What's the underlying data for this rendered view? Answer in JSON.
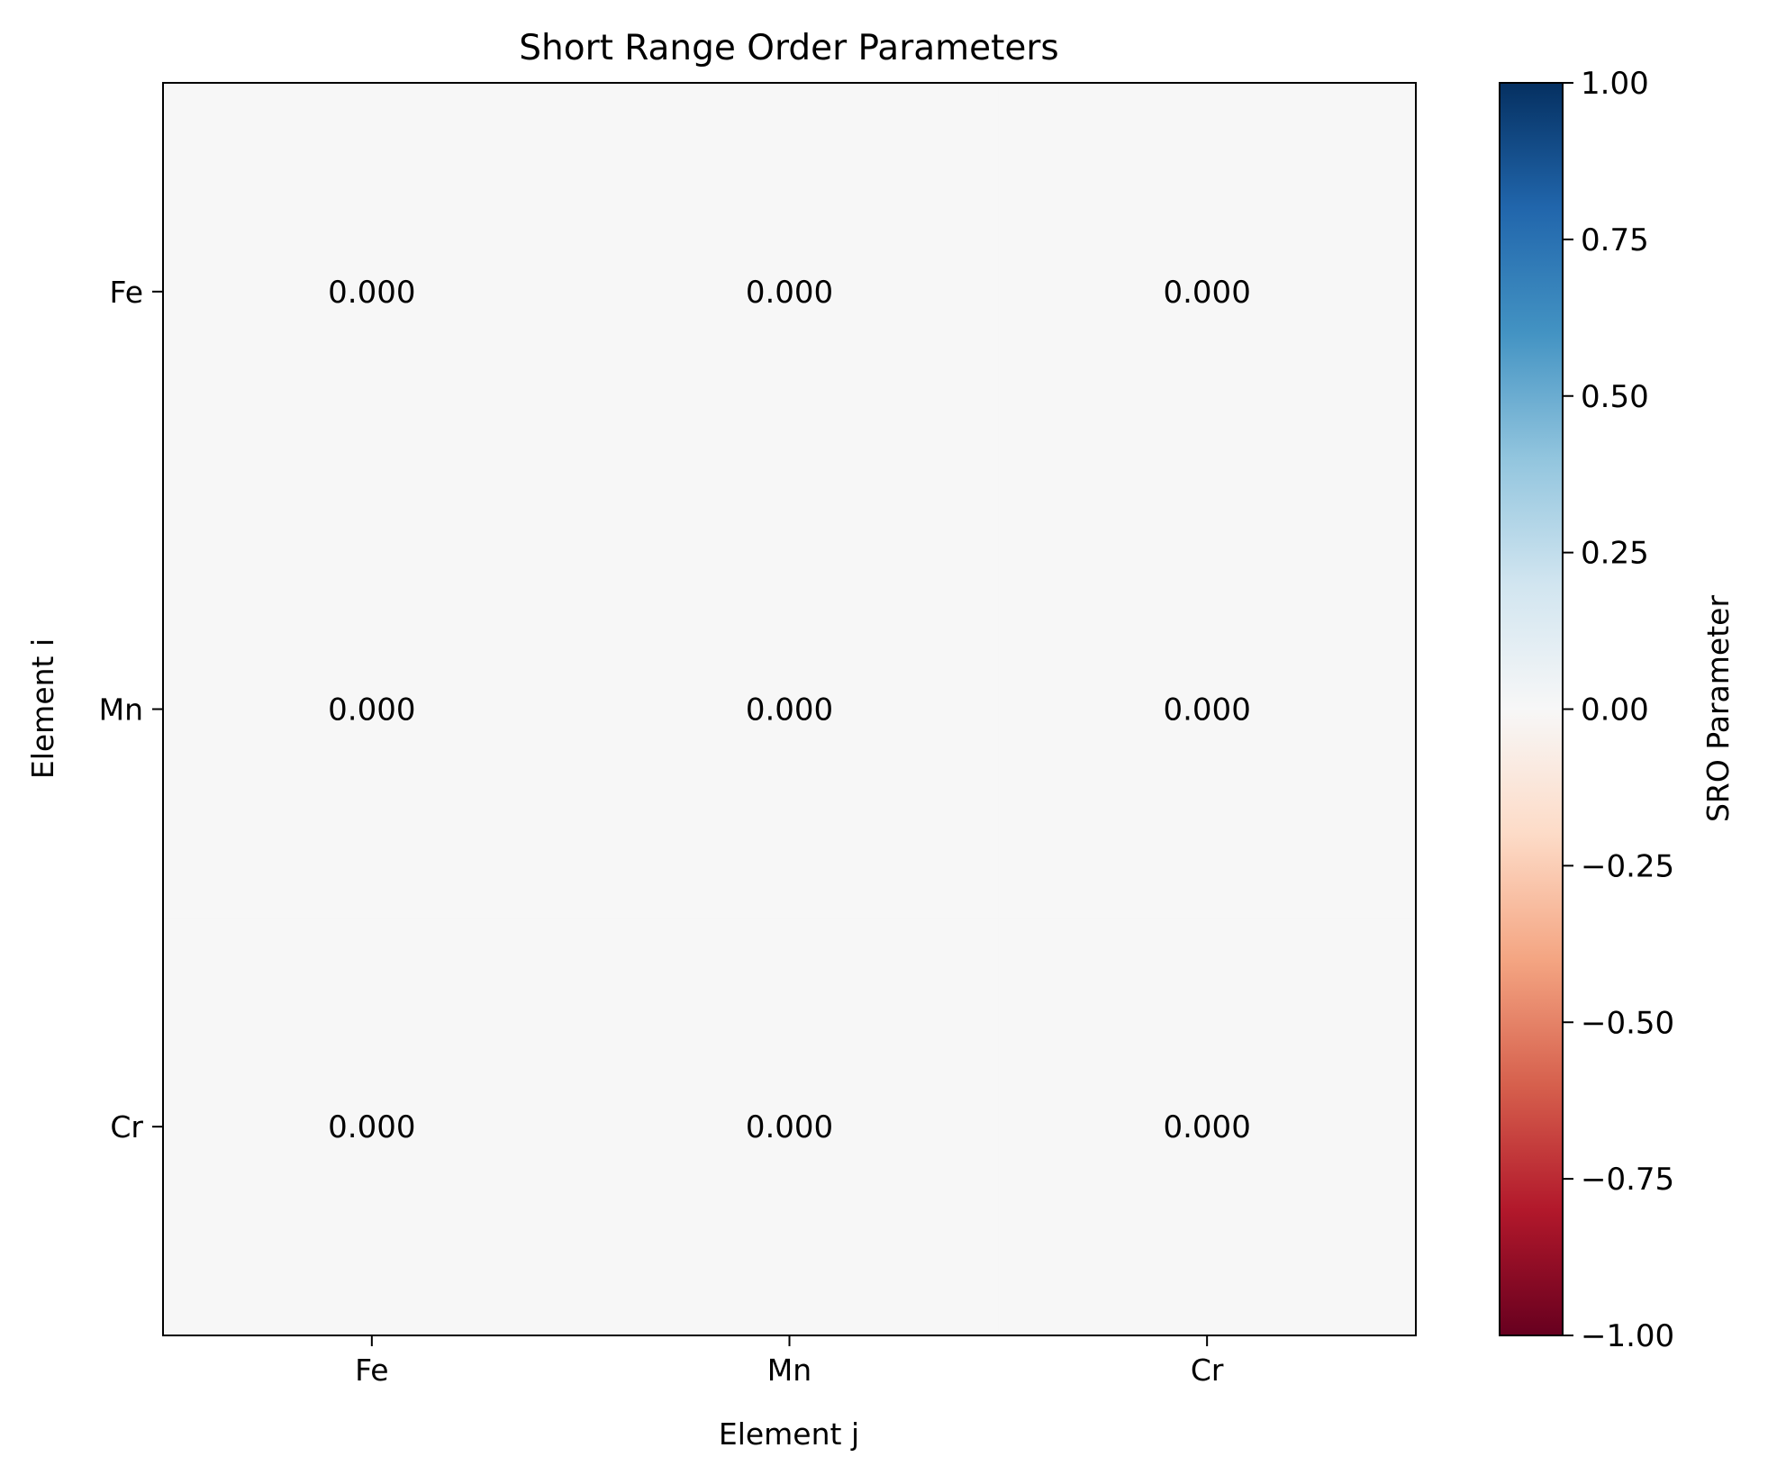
{
  "chart_data": {
    "type": "heatmap",
    "title": "Short Range Order Parameters",
    "xlabel": "Element j",
    "ylabel": "Element i",
    "x_categories": [
      "Fe",
      "Mn",
      "Cr"
    ],
    "y_categories": [
      "Fe",
      "Mn",
      "Cr"
    ],
    "values": [
      [
        0.0,
        0.0,
        0.0
      ],
      [
        0.0,
        0.0,
        0.0
      ],
      [
        0.0,
        0.0,
        0.0
      ]
    ],
    "cell_labels": [
      [
        "0.000",
        "0.000",
        "0.000"
      ],
      [
        "0.000",
        "0.000",
        "0.000"
      ],
      [
        "0.000",
        "0.000",
        "0.000"
      ]
    ],
    "colormap": "RdBu",
    "vmin": -1.0,
    "vmax": 1.0,
    "colorbar": {
      "label": "SRO Parameter",
      "ticks": [
        1.0,
        0.75,
        0.5,
        0.25,
        0.0,
        -0.25,
        -0.5,
        -0.75,
        -1.0
      ],
      "tick_labels": [
        "1.00",
        "0.75",
        "0.50",
        "0.25",
        "0.00",
        "−0.25",
        "−0.50",
        "−0.75",
        "−1.00"
      ],
      "colors": [
        "#67001f",
        "#b2182b",
        "#d6604d",
        "#f4a582",
        "#fddbc7",
        "#f7f7f7",
        "#d1e5f0",
        "#92c5de",
        "#4393c3",
        "#2166ac",
        "#053061"
      ]
    },
    "grid": false,
    "legend": "none"
  }
}
